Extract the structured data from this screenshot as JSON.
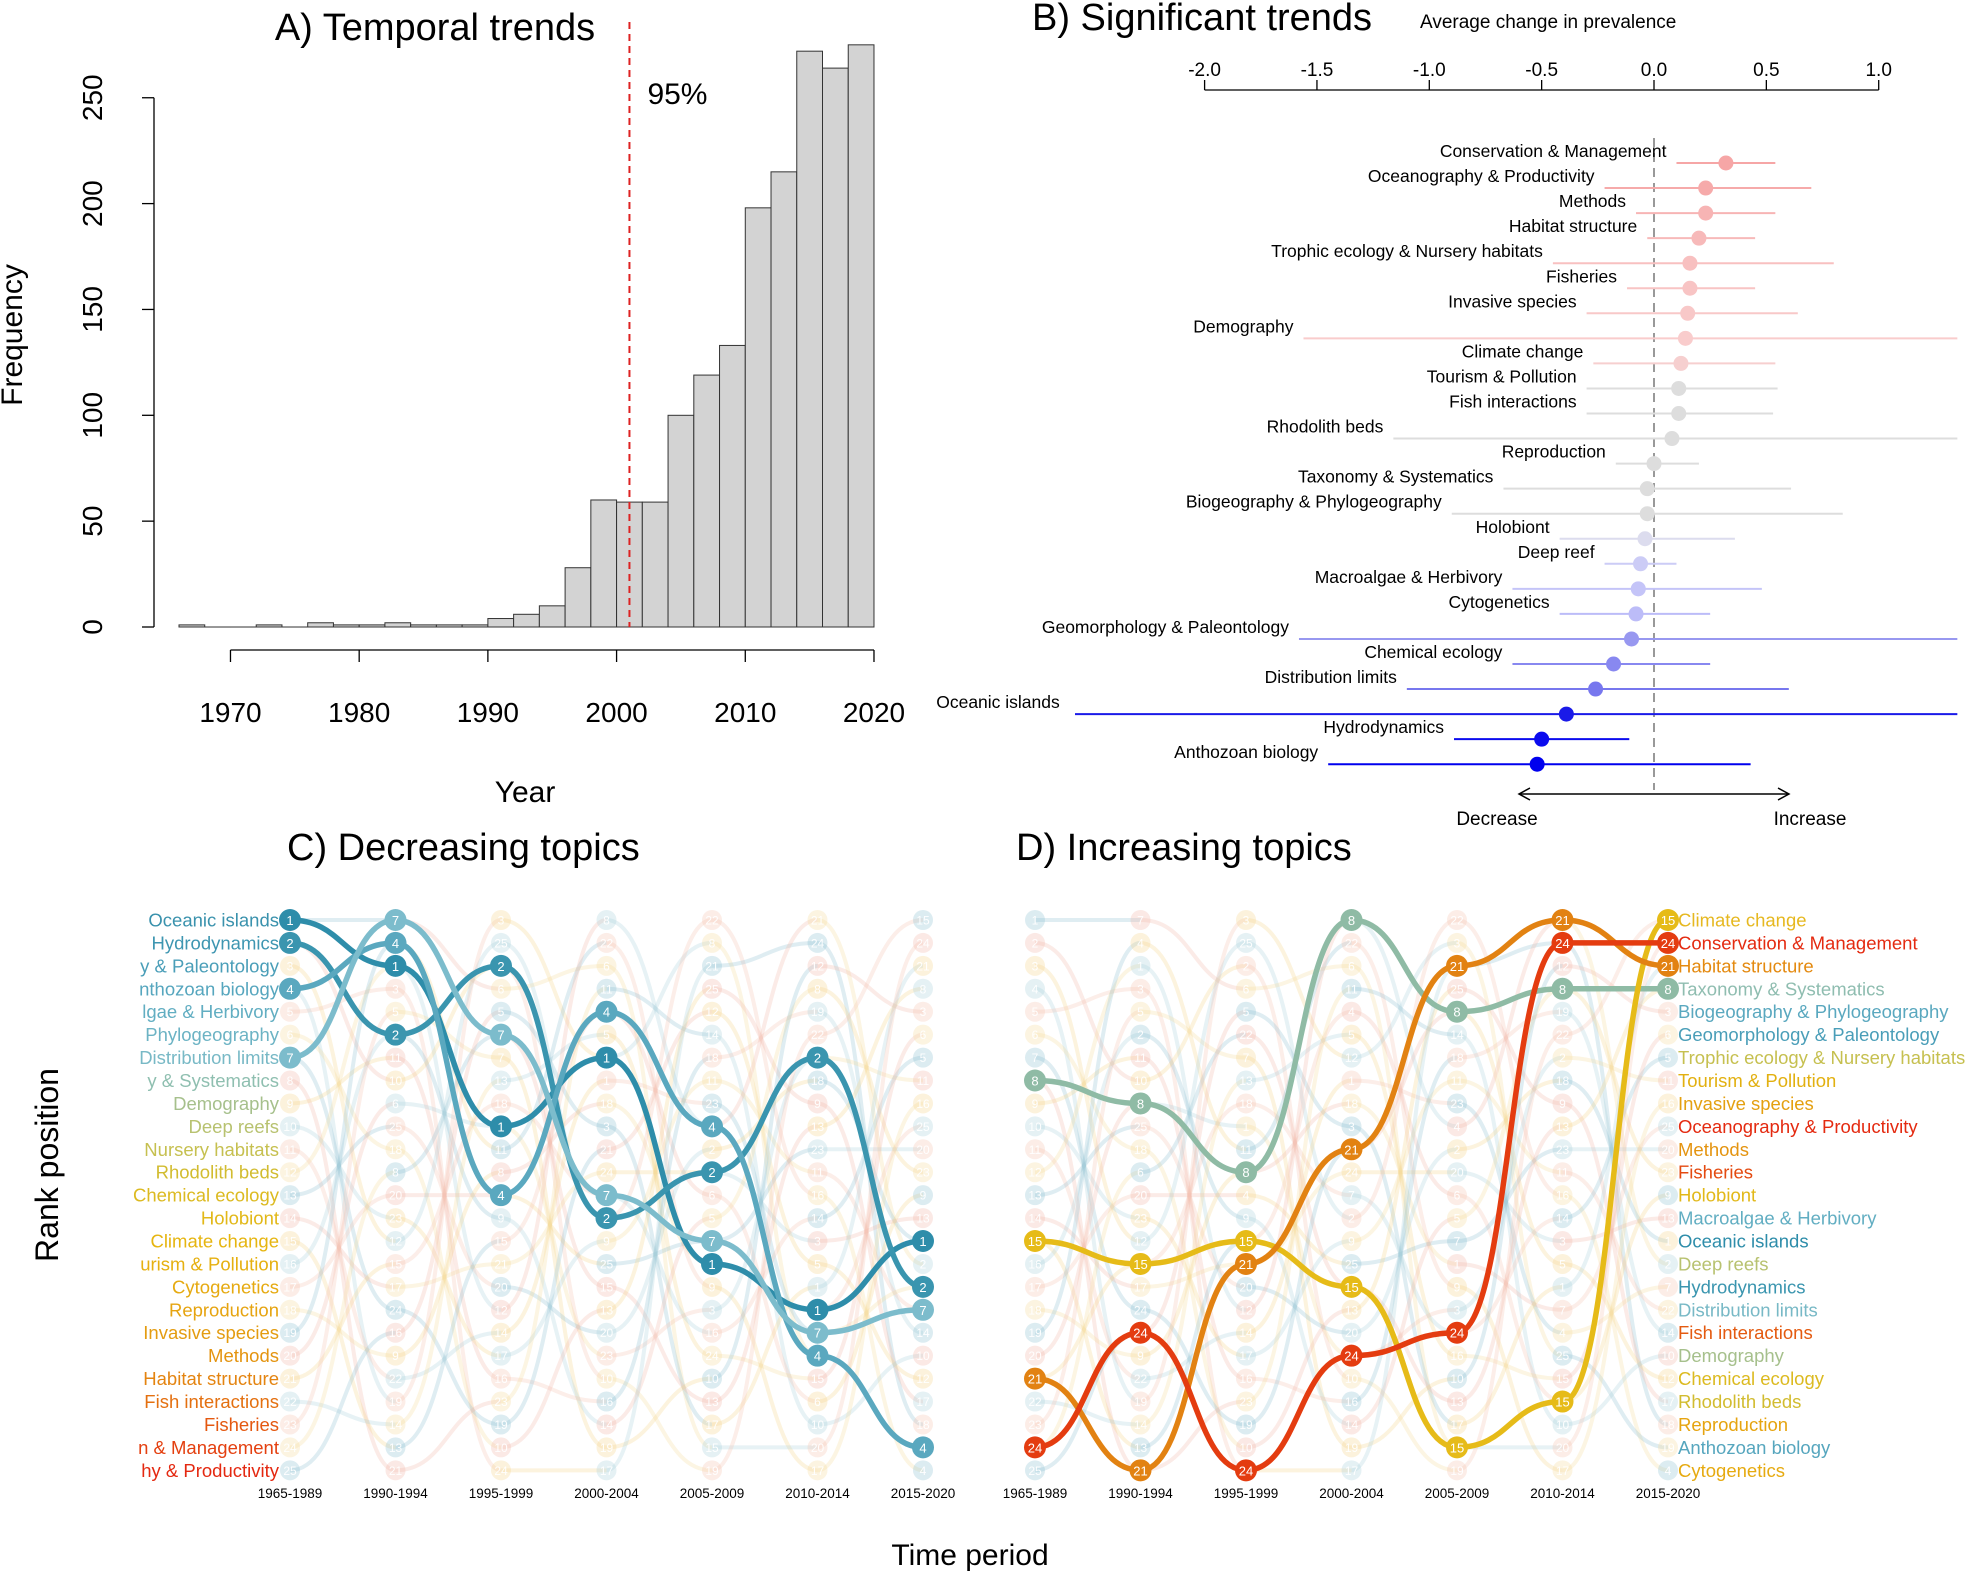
{
  "chart_data": [
    {
      "panel": "A",
      "type": "bar",
      "title": "A) Temporal trends",
      "xlabel": "Year",
      "ylabel": "Frequency",
      "xlim": [
        1966,
        2020
      ],
      "ylim": [
        0,
        250
      ],
      "x_ticks": [
        1970,
        1980,
        1990,
        2000,
        2010,
        2020
      ],
      "y_ticks": [
        0,
        50,
        100,
        150,
        200,
        250
      ],
      "bin_width": 2,
      "bin_starts": [
        1966,
        1968,
        1970,
        1972,
        1974,
        1976,
        1978,
        1980,
        1982,
        1984,
        1986,
        1988,
        1990,
        1992,
        1994,
        1996,
        1998,
        2000,
        2002,
        2004,
        2006,
        2008,
        2010,
        2012,
        2014,
        2016,
        2018
      ],
      "values": [
        1,
        0,
        0,
        1,
        0,
        2,
        1,
        1,
        2,
        1,
        1,
        1,
        4,
        6,
        10,
        28,
        60,
        59,
        59,
        100,
        119,
        133,
        198,
        215,
        272,
        264,
        275
      ],
      "bar_color": "#d3d3d3",
      "marker": {
        "x": 2001,
        "label": "95%",
        "color": "#dd2222"
      }
    },
    {
      "panel": "B",
      "type": "scatter",
      "title": "B) Significant trends",
      "xlabel": "Average change in prevalence",
      "xlim": [
        -2.0,
        1.0
      ],
      "x_ticks": [
        "-2.0",
        "-1.5",
        "-1.0",
        "-0.5",
        "0.0",
        "0.5",
        "1.0"
      ],
      "reference_line": 0.0,
      "direction_labels": {
        "left": "Decrease",
        "right": "Increase"
      },
      "points": [
        {
          "label": "Conservation & Management",
          "mean": 0.32,
          "lo": 0.1,
          "hi": 0.54,
          "color": "#f6a6a6"
        },
        {
          "label": "Oceanography & Productivity",
          "mean": 0.23,
          "lo": -0.22,
          "hi": 0.7,
          "color": "#f6aaaa"
        },
        {
          "label": "Methods",
          "mean": 0.23,
          "lo": -0.08,
          "hi": 0.54,
          "color": "#f7b4b4"
        },
        {
          "label": "Habitat structure",
          "mean": 0.2,
          "lo": -0.03,
          "hi": 0.45,
          "color": "#f7b9b9"
        },
        {
          "label": "Trophic ecology & Nursery habitats",
          "mean": 0.16,
          "lo": -0.45,
          "hi": 0.8,
          "color": "#f8c0c0"
        },
        {
          "label": "Fisheries",
          "mean": 0.16,
          "lo": -0.12,
          "hi": 0.45,
          "color": "#f8c4c4"
        },
        {
          "label": "Invasive species",
          "mean": 0.15,
          "lo": -0.3,
          "hi": 0.64,
          "color": "#f8c8c8"
        },
        {
          "label": "Demography",
          "mean": 0.14,
          "lo": -1.56,
          "hi": 1.35,
          "color": "#f9cccc"
        },
        {
          "label": "Climate change",
          "mean": 0.12,
          "lo": -0.27,
          "hi": 0.54,
          "color": "#f6cfcf"
        },
        {
          "label": "Tourism & Pollution",
          "mean": 0.11,
          "lo": -0.3,
          "hi": 0.55,
          "color": "#dddddd"
        },
        {
          "label": "Fish interactions",
          "mean": 0.11,
          "lo": -0.3,
          "hi": 0.53,
          "color": "#dddddd"
        },
        {
          "label": "Rhodolith beds",
          "mean": 0.08,
          "lo": -1.16,
          "hi": 1.35,
          "color": "#dddddd"
        },
        {
          "label": "Reproduction",
          "mean": 0.0,
          "lo": -0.17,
          "hi": 0.2,
          "color": "#dddddd"
        },
        {
          "label": "Taxonomy & Systematics",
          "mean": -0.03,
          "lo": -0.67,
          "hi": 0.61,
          "color": "#dddddd"
        },
        {
          "label": "Biogeography & Phylogeography",
          "mean": -0.03,
          "lo": -0.9,
          "hi": 0.84,
          "color": "#dddddd"
        },
        {
          "label": "Holobiont",
          "mean": -0.04,
          "lo": -0.42,
          "hi": 0.36,
          "color": "#dcdcee"
        },
        {
          "label": "Deep reef",
          "mean": -0.06,
          "lo": -0.22,
          "hi": 0.1,
          "color": "#ccccf6"
        },
        {
          "label": "Macroalgae & Herbivory",
          "mean": -0.07,
          "lo": -0.63,
          "hi": 0.48,
          "color": "#c4c4f8"
        },
        {
          "label": "Cytogenetics",
          "mean": -0.08,
          "lo": -0.42,
          "hi": 0.25,
          "color": "#bcbcf8"
        },
        {
          "label": "Geomorphology & Paleontology",
          "mean": -0.1,
          "lo": -1.58,
          "hi": 1.35,
          "color": "#9898f0"
        },
        {
          "label": "Chemical ecology",
          "mean": -0.18,
          "lo": -0.63,
          "hi": 0.25,
          "color": "#8888f0"
        },
        {
          "label": "Distribution limits",
          "mean": -0.26,
          "lo": -1.1,
          "hi": 0.6,
          "color": "#7777ee"
        },
        {
          "label": "Oceanic islands",
          "mean": -0.39,
          "lo": -2.6,
          "hi": 1.35,
          "color": "#1a1ae8"
        },
        {
          "label": "Hydrodynamics",
          "mean": -0.5,
          "lo": -0.89,
          "hi": -0.11,
          "color": "#0b0bee"
        },
        {
          "label": "Anthozoan biology",
          "mean": -0.52,
          "lo": -1.45,
          "hi": 0.43,
          "color": "#0000ee"
        }
      ]
    },
    {
      "panel": "C",
      "type": "line",
      "title": "C) Decreasing topics",
      "ylabel": "Rank position",
      "periods": [
        "1965-1989",
        "1990-1994",
        "1995-1999",
        "2000-2004",
        "2005-2009",
        "2010-2014",
        "2015-2020"
      ],
      "rank_labels": [
        {
          "text": "Oceanic islands",
          "color": "#3a92ad"
        },
        {
          "text": "Hydrodynamics",
          "color": "#3e96b1"
        },
        {
          "text": "y & Paleontology",
          "color": "#4a9eb8"
        },
        {
          "text": "nthozoan biology",
          "color": "#56a6be"
        },
        {
          "text": "lgae & Herbivory",
          "color": "#62aec2"
        },
        {
          "text": "Phylogeography",
          "color": "#6cb3c4"
        },
        {
          "text": "Distribution limits",
          "color": "#78b9c6"
        },
        {
          "text": "y & Systematics",
          "color": "#8fbfb0"
        },
        {
          "text": "Demography",
          "color": "#a6c08c"
        },
        {
          "text": "Deep reefs",
          "color": "#b8c270"
        },
        {
          "text": "Nursery habitats",
          "color": "#c6c050"
        },
        {
          "text": "Rhodolith beds",
          "color": "#d2bc30"
        },
        {
          "text": "Chemical ecology",
          "color": "#dcba20"
        },
        {
          "text": "Holobiont",
          "color": "#e2b818"
        },
        {
          "text": "Climate change",
          "color": "#e6b510"
        },
        {
          "text": "urism & Pollution",
          "color": "#e6b010"
        },
        {
          "text": "Cytogenetics",
          "color": "#e6aa10"
        },
        {
          "text": "Reproduction",
          "color": "#e6a410"
        },
        {
          "text": "Invasive species",
          "color": "#e49c10"
        },
        {
          "text": "Methods",
          "color": "#e49410"
        },
        {
          "text": "Habitat structure",
          "color": "#e48410"
        },
        {
          "text": "Fish interactions",
          "color": "#e47010"
        },
        {
          "text": "Fisheries",
          "color": "#e45810"
        },
        {
          "text": "n & Management",
          "color": "#e44010"
        },
        {
          "text": "hy & Productivity",
          "color": "#e42810"
        }
      ],
      "highlighted": [
        {
          "id": "1",
          "color": "#2e8daa",
          "ranks": [
            1,
            3,
            10,
            7,
            16,
            18,
            15
          ]
        },
        {
          "id": "2",
          "color": "#3a95af",
          "ranks": [
            2,
            6,
            3,
            14,
            12,
            7,
            17
          ]
        },
        {
          "id": "4",
          "color": "#5aa8bf",
          "ranks": [
            4,
            2,
            13,
            5,
            10,
            20,
            24
          ]
        },
        {
          "id": "7",
          "color": "#7cbccc",
          "ranks": [
            7,
            1,
            6,
            13,
            15,
            19,
            18
          ]
        }
      ],
      "background_grid": [
        [
          "1",
          "7",
          "3",
          "8",
          "22",
          "21",
          "15"
        ],
        [
          "2",
          "4",
          "25",
          "22",
          "8",
          "24",
          "24"
        ],
        [
          "3",
          "1",
          "2",
          "6",
          "21",
          "12",
          "21"
        ],
        [
          "4",
          "3",
          "6",
          "11",
          "25",
          "8",
          "8"
        ],
        [
          "5",
          "5",
          "5",
          "4",
          "12",
          "19",
          "3"
        ],
        [
          "6",
          "2",
          "22",
          "5",
          "14",
          "22",
          "6"
        ],
        [
          "7",
          "11",
          "7",
          "12",
          "18",
          "2",
          "5"
        ],
        [
          "8",
          "10",
          "13",
          "1",
          "11",
          "18",
          "11"
        ],
        [
          "9",
          "6",
          "18",
          "18",
          "23",
          "9",
          "16"
        ],
        [
          "10",
          "25",
          "1",
          "3",
          "4",
          "13",
          "25"
        ],
        [
          "11",
          "18",
          "11",
          "21",
          "2",
          "23",
          "20"
        ],
        [
          "12",
          "8",
          "8",
          "24",
          "20",
          "11",
          "23"
        ],
        [
          "13",
          "20",
          "4",
          "7",
          "6",
          "16",
          "9"
        ],
        [
          "14",
          "23",
          "9",
          "2",
          "5",
          "14",
          "13"
        ],
        [
          "15",
          "12",
          "15",
          "9",
          "7",
          "3",
          "1"
        ],
        [
          "16",
          "15",
          "21",
          "25",
          "1",
          "5",
          "2"
        ],
        [
          "17",
          "17",
          "20",
          "15",
          "9",
          "1",
          "7"
        ],
        [
          "18",
          "24",
          "12",
          "13",
          "3",
          "7",
          "22"
        ],
        [
          "19",
          "16",
          "14",
          "20",
          "16",
          "4",
          "14"
        ],
        [
          "20",
          "9",
          "17",
          "23",
          "24",
          "25",
          "10"
        ],
        [
          "21",
          "22",
          "16",
          "10",
          "10",
          "15",
          "12"
        ],
        [
          "22",
          "19",
          "23",
          "16",
          "13",
          "6",
          "17"
        ],
        [
          "23",
          "14",
          "19",
          "14",
          "17",
          "10",
          "18"
        ],
        [
          "24",
          "13",
          "10",
          "19",
          "15",
          "20",
          "19"
        ],
        [
          "25",
          "21",
          "24",
          "17",
          "19",
          "17",
          "4"
        ]
      ]
    },
    {
      "panel": "D",
      "type": "line",
      "title": "D) Increasing topics",
      "xlabel": "Time period",
      "periods": [
        "1965-1989",
        "1990-1994",
        "1995-1999",
        "2000-2004",
        "2005-2009",
        "2010-2014",
        "2015-2020"
      ],
      "rank_labels": [
        {
          "text": "Climate change",
          "color": "#e6b820"
        },
        {
          "text": "Conservation & Management",
          "color": "#e42a10"
        },
        {
          "text": "Habitat structure",
          "color": "#e48a10"
        },
        {
          "text": "Taxonomy & Systematics",
          "color": "#8fbdb0"
        },
        {
          "text": "Biogeography & Phylogeography",
          "color": "#5aa8bf"
        },
        {
          "text": "Geomorphology & Paleontology",
          "color": "#4a9eb8"
        },
        {
          "text": "Trophic ecology & Nursery habitats",
          "color": "#c6c050"
        },
        {
          "text": "Tourism & Pollution",
          "color": "#e2b010"
        },
        {
          "text": "Invasive species",
          "color": "#e4a010"
        },
        {
          "text": "Oceanography & Productivity",
          "color": "#e42a10"
        },
        {
          "text": "Methods",
          "color": "#e49410"
        },
        {
          "text": "Fisheries",
          "color": "#e44a10"
        },
        {
          "text": "Holobiont",
          "color": "#e2b818"
        },
        {
          "text": "Macroalgae & Herbivory",
          "color": "#62aec2"
        },
        {
          "text": "Oceanic islands",
          "color": "#2e8daa"
        },
        {
          "text": "Deep reefs",
          "color": "#b8c270"
        },
        {
          "text": "Hydrodynamics",
          "color": "#3a95af"
        },
        {
          "text": "Distribution limits",
          "color": "#78b9c6"
        },
        {
          "text": "Fish interactions",
          "color": "#e45a10"
        },
        {
          "text": "Demography",
          "color": "#a6c08c"
        },
        {
          "text": "Chemical ecology",
          "color": "#dcba20"
        },
        {
          "text": "Rhodolith beds",
          "color": "#d2bc30"
        },
        {
          "text": "Reproduction",
          "color": "#e6a410"
        },
        {
          "text": "Anthozoan biology",
          "color": "#56a6be"
        },
        {
          "text": "Cytogenetics",
          "color": "#e6aa10"
        }
      ],
      "highlighted": [
        {
          "id": "8",
          "color": "#8fbba5",
          "ranks": [
            8,
            9,
            12,
            1,
            5,
            4,
            4
          ]
        },
        {
          "id": "15",
          "color": "#e6bb18",
          "ranks": [
            15,
            16,
            15,
            17,
            24,
            22,
            1
          ]
        },
        {
          "id": "21",
          "color": "#e28212",
          "ranks": [
            21,
            25,
            16,
            11,
            3,
            1,
            3
          ]
        },
        {
          "id": "24",
          "color": "#e43c10",
          "ranks": [
            24,
            19,
            25,
            20,
            19,
            2,
            2
          ]
        }
      ],
      "background_grid": [
        [
          "1",
          "7",
          "3",
          "8",
          "22",
          "21",
          "15"
        ],
        [
          "2",
          "4",
          "25",
          "22",
          "3",
          "24",
          "24"
        ],
        [
          "3",
          "1",
          "2",
          "6",
          "21",
          "12",
          "21"
        ],
        [
          "4",
          "3",
          "6",
          "11",
          "25",
          "8",
          "8"
        ],
        [
          "5",
          "5",
          "5",
          "4",
          "8",
          "19",
          "3"
        ],
        [
          "6",
          "2",
          "22",
          "5",
          "14",
          "22",
          "6"
        ],
        [
          "7",
          "11",
          "7",
          "12",
          "18",
          "2",
          "5"
        ],
        [
          "8",
          "10",
          "13",
          "1",
          "11",
          "18",
          "11"
        ],
        [
          "9",
          "8",
          "18",
          "18",
          "23",
          "9",
          "16"
        ],
        [
          "10",
          "25",
          "1",
          "3",
          "4",
          "13",
          "25"
        ],
        [
          "11",
          "18",
          "11",
          "21",
          "2",
          "23",
          "20"
        ],
        [
          "12",
          "6",
          "8",
          "24",
          "20",
          "11",
          "23"
        ],
        [
          "13",
          "20",
          "4",
          "7",
          "6",
          "16",
          "9"
        ],
        [
          "14",
          "23",
          "9",
          "2",
          "5",
          "14",
          "13"
        ],
        [
          "15",
          "12",
          "15",
          "9",
          "7",
          "3",
          "1"
        ],
        [
          "16",
          "15",
          "21",
          "25",
          "1",
          "5",
          "2"
        ],
        [
          "17",
          "17",
          "20",
          "15",
          "9",
          "1",
          "7"
        ],
        [
          "18",
          "24",
          "12",
          "13",
          "3",
          "7",
          "22"
        ],
        [
          "19",
          "16",
          "14",
          "20",
          "24",
          "4",
          "14"
        ],
        [
          "20",
          "9",
          "17",
          "24",
          "16",
          "25",
          "10"
        ],
        [
          "21",
          "22",
          "16",
          "10",
          "10",
          "15",
          "12"
        ],
        [
          "22",
          "19",
          "23",
          "16",
          "13",
          "6",
          "17"
        ],
        [
          "23",
          "14",
          "19",
          "14",
          "17",
          "10",
          "18"
        ],
        [
          "24",
          "13",
          "10",
          "19",
          "15",
          "20",
          "19"
        ],
        [
          "25",
          "21",
          "24",
          "17",
          "19",
          "17",
          "4"
        ]
      ]
    }
  ]
}
